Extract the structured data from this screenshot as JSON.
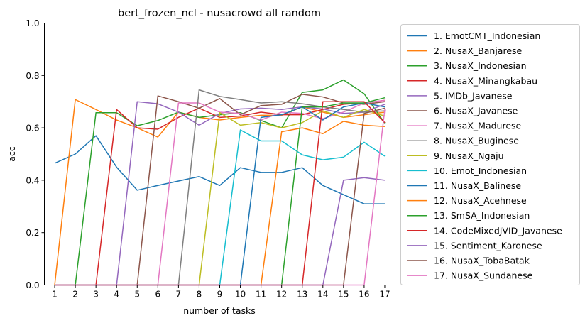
{
  "chart_data": {
    "type": "line",
    "title": "bert_frozen_ncl - nusacrowd all random",
    "xlabel": "number of tasks",
    "ylabel": "acc",
    "xlim": [
      0.5,
      17.5
    ],
    "ylim": [
      0.0,
      1.0
    ],
    "x": [
      1,
      2,
      3,
      4,
      5,
      6,
      7,
      8,
      9,
      10,
      11,
      12,
      13,
      14,
      15,
      16,
      17
    ],
    "xticks": [
      "1",
      "2",
      "3",
      "4",
      "5",
      "6",
      "7",
      "8",
      "9",
      "10",
      "11",
      "12",
      "13",
      "14",
      "15",
      "16",
      "17"
    ],
    "yticks": [
      "0.0",
      "0.2",
      "0.4",
      "0.6",
      "0.8",
      "1.0"
    ],
    "legend_position": "outside-right",
    "grid": false,
    "series": [
      {
        "name": "1. EmotCMT_Indonesian",
        "color": "#1f77b4",
        "values": [
          0.465,
          0.5,
          0.57,
          0.45,
          0.362,
          0.38,
          0.397,
          0.414,
          0.38,
          0.448,
          0.43,
          0.43,
          0.448,
          0.38,
          0.345,
          0.31,
          0.31
        ]
      },
      {
        "name": "2. NusaX_Banjarese",
        "color": "#ff7f0e",
        "values": [
          0.0,
          0.708,
          0.67,
          0.63,
          0.6,
          0.565,
          0.66,
          0.64,
          0.63,
          0.64,
          0.648,
          0.648,
          0.68,
          0.66,
          0.64,
          0.65,
          0.66
        ]
      },
      {
        "name": "3. NusaX_Indonesian",
        "color": "#2ca02c",
        "values": [
          0.0,
          0.0,
          0.658,
          0.658,
          0.608,
          0.628,
          0.66,
          0.64,
          0.65,
          0.658,
          0.628,
          0.6,
          0.735,
          0.745,
          0.783,
          0.73,
          0.618
        ]
      },
      {
        "name": "4. NusaX_Minangkabau",
        "color": "#d62728",
        "values": [
          0.0,
          0.0,
          0.0,
          0.67,
          0.6,
          0.595,
          0.64,
          0.675,
          0.64,
          0.645,
          0.66,
          0.65,
          0.65,
          0.67,
          0.69,
          0.695,
          0.705
        ]
      },
      {
        "name": "5. IMDb_Javanese",
        "color": "#9467bd",
        "values": [
          0.0,
          0.0,
          0.0,
          0.0,
          0.7,
          0.692,
          0.66,
          0.61,
          0.655,
          0.672,
          0.675,
          0.67,
          0.68,
          0.672,
          0.655,
          0.66,
          0.69
        ]
      },
      {
        "name": "6. NusaX_Javanese",
        "color": "#8c564b",
        "values": [
          0.0,
          0.0,
          0.0,
          0.0,
          0.0,
          0.722,
          0.7,
          0.675,
          0.712,
          0.65,
          0.685,
          0.69,
          0.728,
          0.718,
          0.695,
          0.69,
          0.7
        ]
      },
      {
        "name": "7. NusaX_Madurese",
        "color": "#e377c2",
        "values": [
          0.0,
          0.0,
          0.0,
          0.0,
          0.0,
          0.0,
          0.695,
          0.695,
          0.66,
          0.655,
          0.63,
          0.66,
          0.655,
          0.635,
          0.66,
          0.695,
          0.705
        ]
      },
      {
        "name": "8. NusaX_Buginese",
        "color": "#7f7f7f",
        "values": [
          0.0,
          0.0,
          0.0,
          0.0,
          0.0,
          0.0,
          0.0,
          0.745,
          0.72,
          0.708,
          0.695,
          0.7,
          0.692,
          0.68,
          0.67,
          0.66,
          0.665
        ]
      },
      {
        "name": "9. NusaX_Ngaju",
        "color": "#bcbd22",
        "values": [
          0.0,
          0.0,
          0.0,
          0.0,
          0.0,
          0.0,
          0.0,
          0.0,
          0.658,
          0.61,
          0.62,
          0.6,
          0.62,
          0.665,
          0.64,
          0.67,
          0.645
        ]
      },
      {
        "name": "10. Emot_Indonesian",
        "color": "#17becf",
        "values": [
          0.0,
          0.0,
          0.0,
          0.0,
          0.0,
          0.0,
          0.0,
          0.0,
          0.0,
          0.592,
          0.55,
          0.55,
          0.497,
          0.478,
          0.488,
          0.545,
          0.492
        ]
      },
      {
        "name": "11. NusaX_Balinese",
        "color": "#1f77b4",
        "values": [
          0.0,
          0.0,
          0.0,
          0.0,
          0.0,
          0.0,
          0.0,
          0.0,
          0.0,
          0.0,
          0.64,
          0.65,
          0.68,
          0.63,
          0.68,
          0.695,
          0.68
        ]
      },
      {
        "name": "12. NusaX_Acehnese",
        "color": "#ff7f0e",
        "values": [
          0.0,
          0.0,
          0.0,
          0.0,
          0.0,
          0.0,
          0.0,
          0.0,
          0.0,
          0.0,
          0.0,
          0.585,
          0.6,
          0.578,
          0.625,
          0.61,
          0.605
        ]
      },
      {
        "name": "13. SmSA_Indonesian",
        "color": "#2ca02c",
        "values": [
          0.0,
          0.0,
          0.0,
          0.0,
          0.0,
          0.0,
          0.0,
          0.0,
          0.0,
          0.0,
          0.0,
          0.0,
          0.68,
          0.68,
          0.695,
          0.695,
          0.715
        ]
      },
      {
        "name": "14. CodeMixedJVID_Javanese",
        "color": "#d62728",
        "values": [
          0.0,
          0.0,
          0.0,
          0.0,
          0.0,
          0.0,
          0.0,
          0.0,
          0.0,
          0.0,
          0.0,
          0.0,
          0.0,
          0.7,
          0.7,
          0.7,
          0.62
        ]
      },
      {
        "name": "15. Sentiment_Karonese",
        "color": "#9467bd",
        "values": [
          0.0,
          0.0,
          0.0,
          0.0,
          0.0,
          0.0,
          0.0,
          0.0,
          0.0,
          0.0,
          0.0,
          0.0,
          0.0,
          0.0,
          0.4,
          0.41,
          0.4
        ]
      },
      {
        "name": "16. NusaX_TobaBatak",
        "color": "#8c564b",
        "values": [
          0.0,
          0.0,
          0.0,
          0.0,
          0.0,
          0.0,
          0.0,
          0.0,
          0.0,
          0.0,
          0.0,
          0.0,
          0.0,
          0.0,
          0.0,
          0.655,
          0.675
        ]
      },
      {
        "name": "17. NusaX_Sundanese",
        "color": "#e377c2",
        "values": [
          0.0,
          0.0,
          0.0,
          0.0,
          0.0,
          0.0,
          0.0,
          0.0,
          0.0,
          0.0,
          0.0,
          0.0,
          0.0,
          0.0,
          0.0,
          0.0,
          0.67
        ]
      }
    ]
  }
}
